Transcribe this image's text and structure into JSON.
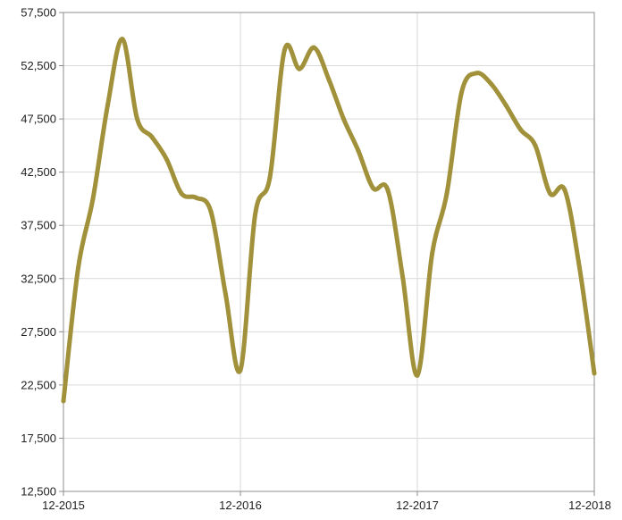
{
  "chart_data": {
    "type": "line",
    "title": "",
    "xlabel": "",
    "ylabel": "",
    "ylim": [
      12500,
      57500
    ],
    "xlim": [
      0,
      36
    ],
    "y_ticks": [
      "12,500",
      "17,500",
      "22,500",
      "27,500",
      "32,500",
      "37,500",
      "42,500",
      "47,500",
      "52,500",
      "57,500"
    ],
    "y_tick_values": [
      12500,
      17500,
      22500,
      27500,
      32500,
      37500,
      42500,
      47500,
      52500,
      57500
    ],
    "x_ticks": [
      "12-2015",
      "12-2016",
      "12-2017",
      "12-2018"
    ],
    "x_tick_values": [
      0,
      12,
      24,
      36
    ],
    "grid": true,
    "legend": "none",
    "series": [
      {
        "color": "#a0913a",
        "x": [
          0,
          1,
          2,
          3,
          4,
          5,
          6,
          7,
          8,
          9,
          10,
          11,
          12,
          13,
          14,
          15,
          16,
          17,
          18,
          19,
          20,
          21,
          22,
          23,
          24,
          25,
          26,
          27,
          28,
          29,
          30,
          31,
          32,
          33,
          34,
          35,
          36
        ],
        "y": [
          21000,
          33500,
          40000,
          48800,
          55000,
          47500,
          45800,
          43700,
          40500,
          40100,
          38800,
          31000,
          23900,
          38500,
          42000,
          54000,
          52200,
          54200,
          51200,
          47500,
          44500,
          41000,
          40800,
          32700,
          23400,
          34800,
          40500,
          50000,
          51800,
          50800,
          48800,
          46500,
          45000,
          40500,
          40800,
          33500,
          23600
        ]
      }
    ]
  }
}
